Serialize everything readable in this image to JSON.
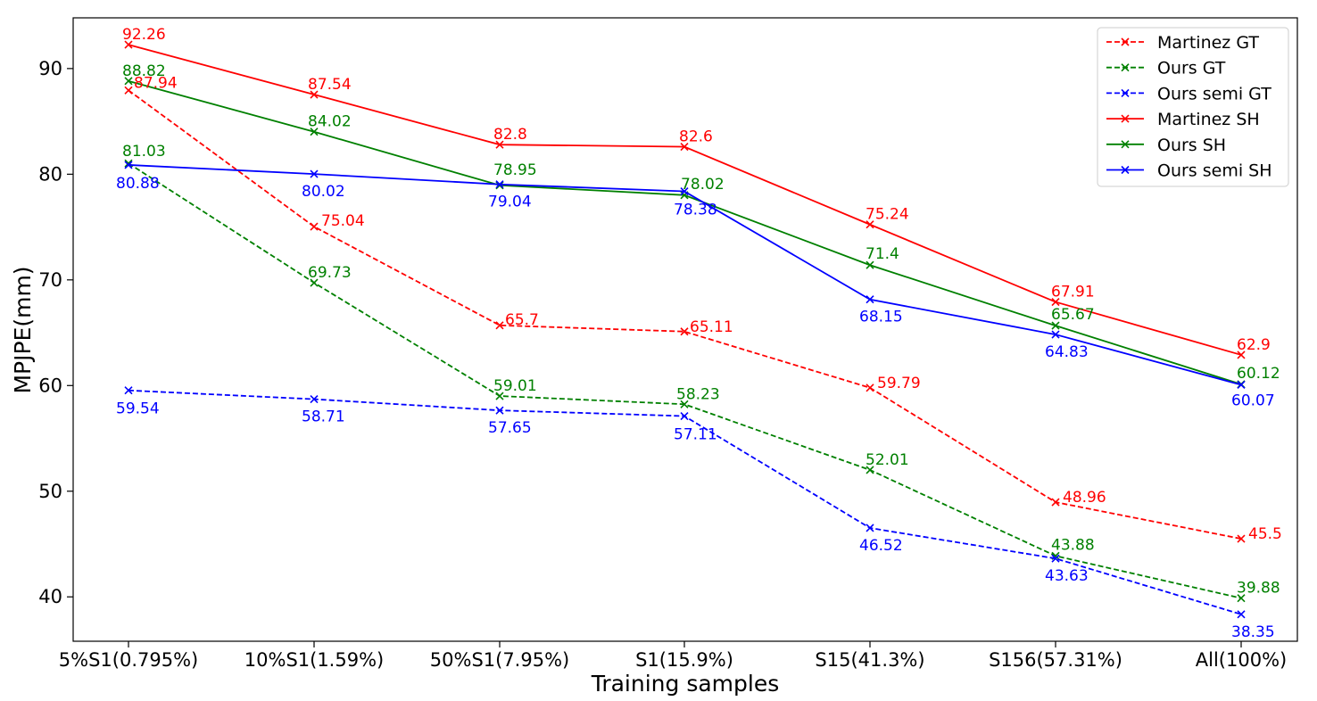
{
  "chart_data": {
    "type": "line",
    "xlabel": "Training samples",
    "ylabel": "MPJPE(mm)",
    "categories": [
      "5%S1(0.795%)",
      "10%S1(1.59%)",
      "50%S1(7.95%)",
      "S1(15.9%)",
      "S15(41.3%)",
      "S156(57.31%)",
      "All(100%)"
    ],
    "ylim": [
      35.8,
      94.8
    ],
    "yticks": [
      40,
      50,
      60,
      70,
      80,
      90
    ],
    "grid": false,
    "legend_position": "top-right",
    "series": [
      {
        "name": "Martinez GT",
        "color": "#ff0000",
        "dash": true,
        "values": [
          87.94,
          75.04,
          65.7,
          65.11,
          59.79,
          48.96,
          45.5
        ],
        "labels": [
          "87.94",
          "75.04",
          "65.7",
          "65.11",
          "59.79",
          "48.96",
          "45.5"
        ]
      },
      {
        "name": "Ours GT",
        "color": "#008000",
        "dash": true,
        "values": [
          81.03,
          69.73,
          59.01,
          58.23,
          52.01,
          43.88,
          39.88
        ],
        "labels": [
          "81.03",
          "69.73",
          "59.01",
          "58.23",
          "52.01",
          "43.88",
          "39.88"
        ]
      },
      {
        "name": "Ours semi GT",
        "color": "#0000ff",
        "dash": true,
        "values": [
          59.54,
          58.71,
          57.65,
          57.11,
          46.52,
          43.63,
          38.35
        ],
        "labels": [
          "59.54",
          "58.71",
          "57.65",
          "57.11",
          "46.52",
          "43.63",
          "38.35"
        ]
      },
      {
        "name": "Martinez SH",
        "color": "#ff0000",
        "dash": false,
        "values": [
          92.26,
          87.54,
          82.8,
          82.6,
          75.24,
          67.91,
          62.9
        ],
        "labels": [
          "92.26",
          "87.54",
          "82.8",
          "82.6",
          "75.24",
          "67.91",
          "62.9"
        ]
      },
      {
        "name": "Ours SH",
        "color": "#008000",
        "dash": false,
        "values": [
          88.82,
          84.02,
          78.95,
          78.02,
          71.4,
          65.67,
          60.12
        ],
        "labels": [
          "88.82",
          "84.02",
          "78.95",
          "78.02",
          "71.4",
          "65.67",
          "60.12"
        ]
      },
      {
        "name": "Ours semi SH",
        "color": "#0000ff",
        "dash": false,
        "values": [
          80.88,
          80.02,
          79.04,
          78.38,
          68.15,
          64.83,
          60.07
        ],
        "labels": [
          "80.88",
          "80.02",
          "79.04",
          "78.38",
          "68.15",
          "64.83",
          "60.07"
        ]
      }
    ]
  }
}
